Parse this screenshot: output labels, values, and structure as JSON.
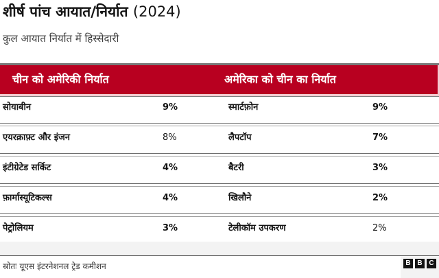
{
  "header": {
    "title": "शीर्ष पांच आयात/निर्यात",
    "year": "(2024)",
    "subtitle": "कुल आयात निर्यात में हिस्सेदारी"
  },
  "table": {
    "columns": {
      "left": "चीन को अमेरिकी निर्यात",
      "right": "अमेरिका को चीन का निर्यात"
    },
    "accent_color": "#b80020",
    "rows": [
      {
        "left_item": "सोयाबीन",
        "left_value": "9%",
        "right_item": "स्मार्टफ़ोन",
        "right_value": "9%"
      },
      {
        "left_item": "एयरक्राफ़्ट और इंजन",
        "left_value": "8%",
        "right_item": "लैपटॉप",
        "right_value": "7%"
      },
      {
        "left_item": "इंटीग्रेटेड सर्किट",
        "left_value": "4%",
        "right_item": "बैटरी",
        "right_value": "3%"
      },
      {
        "left_item": "फ़ार्मास्यूटिकल्स",
        "left_value": "4%",
        "right_item": "खिलौने",
        "right_value": "2%"
      },
      {
        "left_item": "पेट्रोलियम",
        "left_value": "3%",
        "right_item": "टेलीकॉम उपकरण",
        "right_value": "2%"
      }
    ]
  },
  "footer": {
    "source": "स्रोतः यूएस इंटरनेशनल ट्रेड कमीशन",
    "logo_letters": [
      "B",
      "B",
      "C"
    ]
  }
}
